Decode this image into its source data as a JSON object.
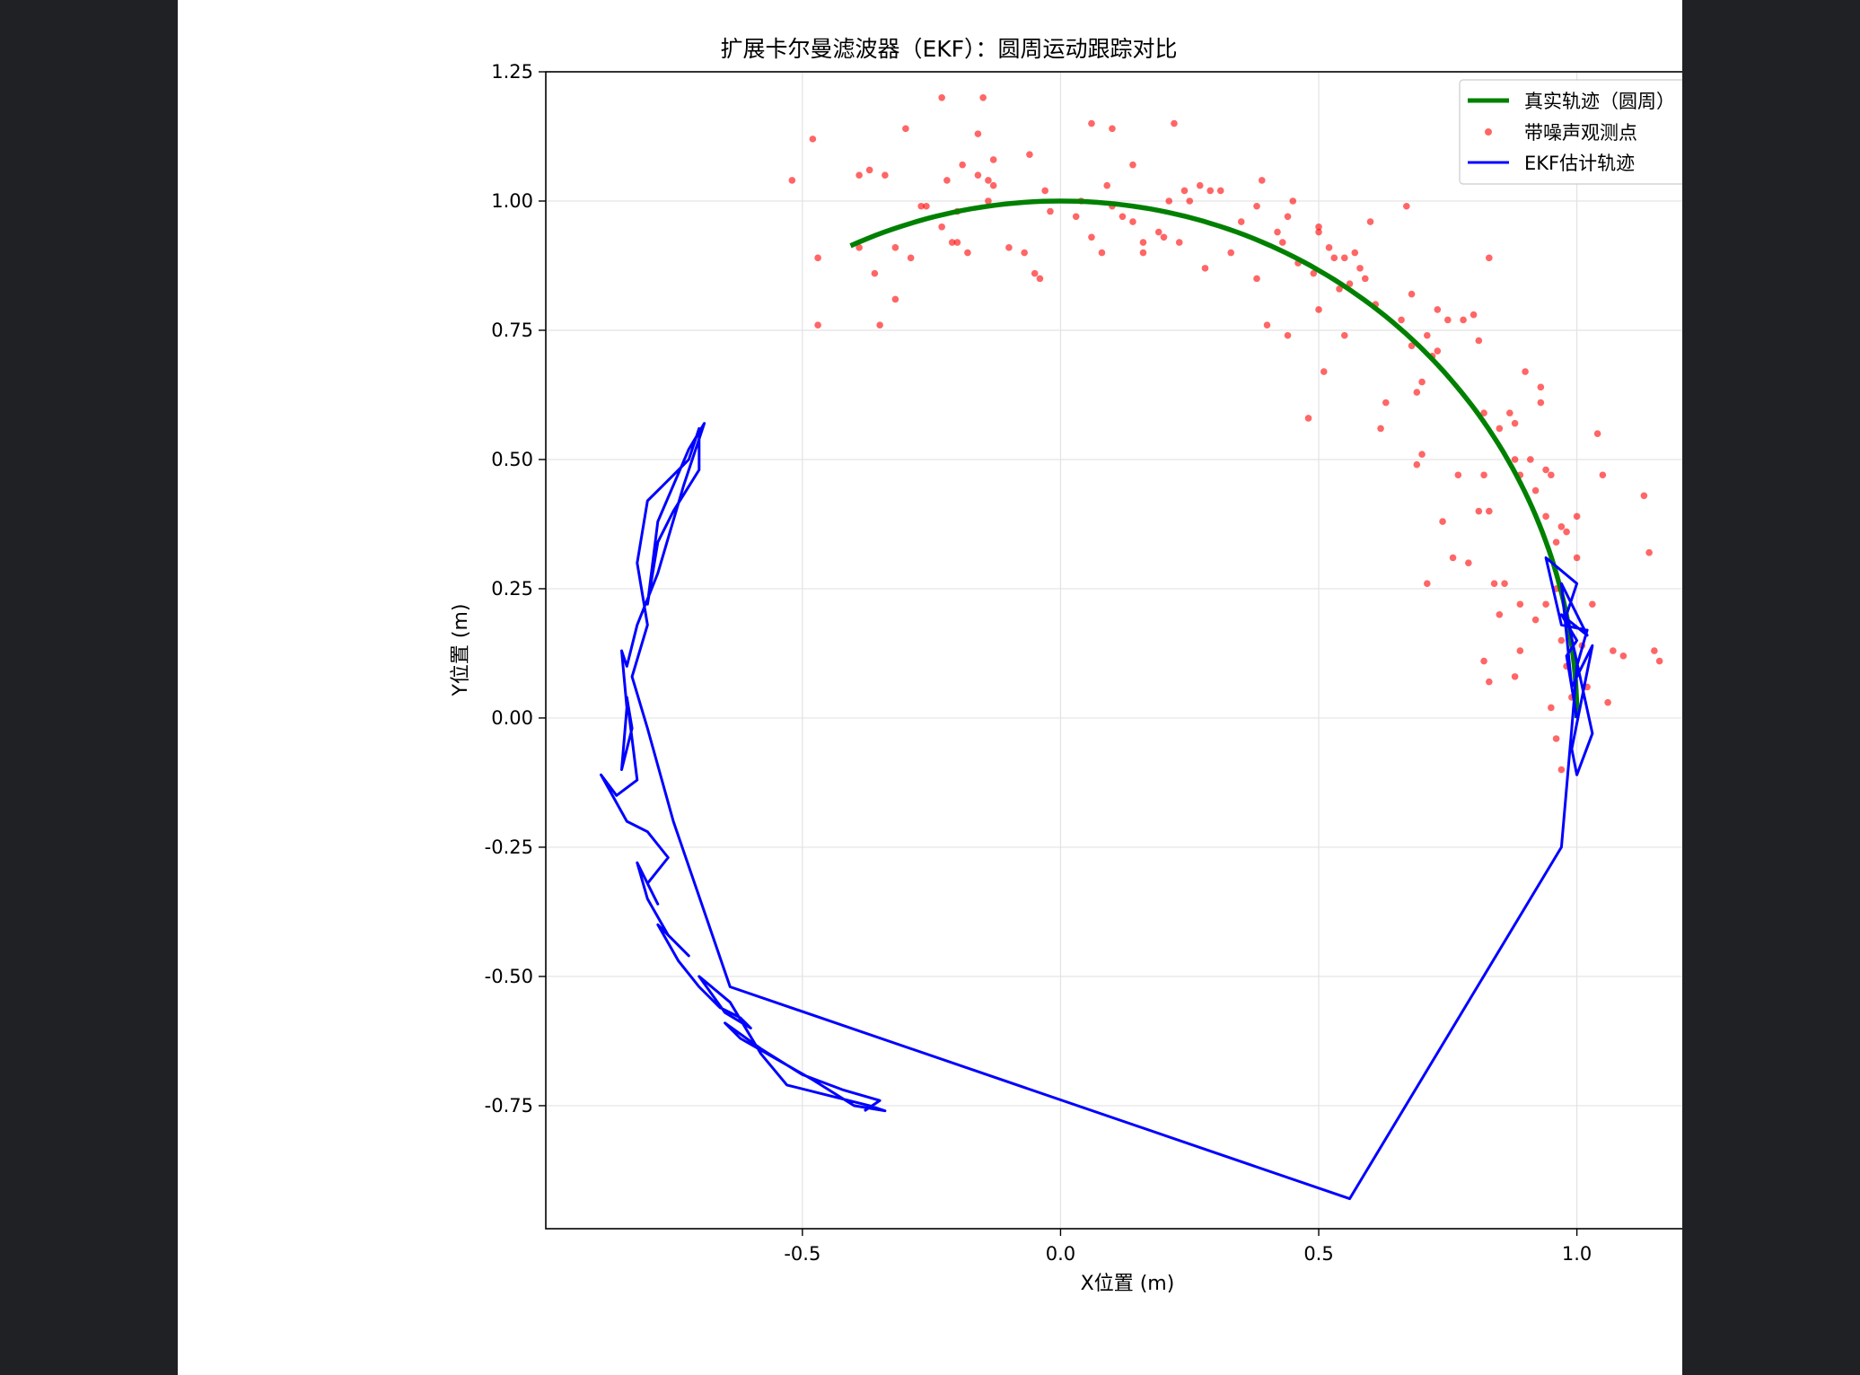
{
  "chart_data": {
    "type": "line",
    "title": "扩展卡尔曼滤波器（EKF）：圆周运动跟踪对比",
    "xlabel": "X位置 (m)",
    "ylabel": "Y位置 (m)",
    "xlim": [
      -0.997,
      1.258
    ],
    "ylim": [
      -0.988,
      1.25
    ],
    "xticks": [
      -0.5,
      0.0,
      0.5,
      1.0
    ],
    "xtick_labels": [
      "-0.5",
      "0.0",
      "0.5",
      "1.0"
    ],
    "yticks": [
      -0.75,
      -0.5,
      -0.25,
      0.0,
      0.25,
      0.5,
      0.75,
      1.0,
      1.25
    ],
    "ytick_labels": [
      "-0.75",
      "-0.50",
      "-0.25",
      "0.00",
      "0.25",
      "0.50",
      "0.75",
      "1.00",
      "1.25"
    ],
    "grid": true,
    "legend_position": "top-right",
    "series": [
      {
        "name": "真实轨迹（圆周）",
        "kind": "line",
        "color": "#008000",
        "arc": {
          "center": [
            0,
            0
          ],
          "radius": 1.0,
          "start_deg": 0,
          "end_deg": 114
        }
      },
      {
        "name": "带噪声观测点",
        "kind": "scatter",
        "color": "#ff0000",
        "points": [
          [
            -0.52,
            1.04
          ],
          [
            -0.48,
            1.12
          ],
          [
            -0.47,
            0.89
          ],
          [
            -0.47,
            0.76
          ],
          [
            -0.39,
            0.91
          ],
          [
            -0.39,
            1.05
          ],
          [
            -0.37,
            1.06
          ],
          [
            -0.36,
            0.86
          ],
          [
            -0.35,
            0.76
          ],
          [
            -0.34,
            1.05
          ],
          [
            -0.32,
            0.81
          ],
          [
            -0.32,
            0.91
          ],
          [
            -0.3,
            1.14
          ],
          [
            -0.29,
            0.89
          ],
          [
            -0.27,
            0.99
          ],
          [
            -0.26,
            0.99
          ],
          [
            -0.23,
            0.95
          ],
          [
            -0.23,
            1.2
          ],
          [
            -0.22,
            1.04
          ],
          [
            -0.21,
            0.92
          ],
          [
            -0.2,
            0.98
          ],
          [
            -0.2,
            0.92
          ],
          [
            -0.19,
            1.07
          ],
          [
            -0.18,
            0.9
          ],
          [
            -0.16,
            1.05
          ],
          [
            -0.16,
            1.13
          ],
          [
            -0.15,
            1.2
          ],
          [
            -0.14,
            1.04
          ],
          [
            -0.14,
            1.0
          ],
          [
            -0.13,
            1.03
          ],
          [
            -0.13,
            1.08
          ],
          [
            -0.1,
            0.91
          ],
          [
            -0.07,
            0.9
          ],
          [
            -0.06,
            1.09
          ],
          [
            -0.05,
            0.86
          ],
          [
            -0.04,
            0.85
          ],
          [
            -0.03,
            1.02
          ],
          [
            -0.02,
            0.98
          ],
          [
            0.04,
            1.0
          ],
          [
            0.06,
            1.15
          ],
          [
            0.03,
            0.97
          ],
          [
            0.06,
            0.93
          ],
          [
            0.08,
            0.9
          ],
          [
            0.09,
            1.03
          ],
          [
            0.1,
            1.14
          ],
          [
            0.1,
            0.99
          ],
          [
            0.12,
            0.97
          ],
          [
            0.14,
            0.96
          ],
          [
            0.14,
            1.07
          ],
          [
            0.16,
            0.92
          ],
          [
            0.16,
            0.9
          ],
          [
            0.19,
            0.94
          ],
          [
            0.2,
            0.93
          ],
          [
            0.21,
            1.0
          ],
          [
            0.22,
            1.15
          ],
          [
            0.23,
            0.92
          ],
          [
            0.24,
            1.02
          ],
          [
            0.25,
            1.0
          ],
          [
            0.27,
            1.03
          ],
          [
            0.28,
            0.87
          ],
          [
            0.29,
            1.02
          ],
          [
            0.31,
            1.02
          ],
          [
            0.33,
            0.9
          ],
          [
            0.35,
            0.96
          ],
          [
            0.38,
            0.85
          ],
          [
            0.38,
            0.99
          ],
          [
            0.39,
            1.04
          ],
          [
            0.4,
            0.76
          ],
          [
            0.42,
            0.94
          ],
          [
            0.43,
            0.92
          ],
          [
            0.44,
            0.74
          ],
          [
            0.44,
            0.97
          ],
          [
            0.45,
            1.0
          ],
          [
            0.46,
            0.88
          ],
          [
            0.48,
            0.58
          ],
          [
            0.49,
            0.86
          ],
          [
            0.5,
            0.79
          ],
          [
            0.5,
            0.94
          ],
          [
            0.5,
            0.95
          ],
          [
            0.51,
            0.67
          ],
          [
            0.52,
            0.91
          ],
          [
            0.53,
            0.89
          ],
          [
            0.54,
            0.83
          ],
          [
            0.55,
            0.74
          ],
          [
            0.55,
            0.89
          ],
          [
            0.56,
            0.84
          ],
          [
            0.57,
            0.9
          ],
          [
            0.58,
            0.87
          ],
          [
            0.59,
            0.85
          ],
          [
            0.6,
            0.96
          ],
          [
            0.61,
            0.8
          ],
          [
            0.62,
            0.56
          ],
          [
            0.63,
            0.61
          ],
          [
            0.66,
            0.77
          ],
          [
            0.67,
            0.99
          ],
          [
            0.68,
            0.82
          ],
          [
            0.68,
            0.72
          ],
          [
            0.69,
            0.63
          ],
          [
            0.69,
            0.49
          ],
          [
            0.7,
            0.51
          ],
          [
            0.7,
            0.65
          ],
          [
            0.71,
            0.26
          ],
          [
            0.71,
            0.74
          ],
          [
            0.72,
            0.7
          ],
          [
            0.73,
            0.79
          ],
          [
            0.73,
            0.71
          ],
          [
            0.74,
            0.38
          ],
          [
            0.75,
            0.77
          ],
          [
            0.76,
            0.31
          ],
          [
            0.77,
            0.47
          ],
          [
            0.78,
            0.77
          ],
          [
            0.79,
            0.3
          ],
          [
            0.8,
            0.78
          ],
          [
            0.81,
            0.73
          ],
          [
            0.81,
            0.4
          ],
          [
            0.82,
            0.59
          ],
          [
            0.82,
            0.47
          ],
          [
            0.82,
            0.11
          ],
          [
            0.83,
            0.89
          ],
          [
            0.83,
            0.4
          ],
          [
            0.84,
            0.26
          ],
          [
            0.85,
            0.2
          ],
          [
            0.85,
            0.56
          ],
          [
            0.86,
            0.26
          ],
          [
            0.87,
            0.59
          ],
          [
            0.88,
            0.5
          ],
          [
            0.88,
            0.57
          ],
          [
            0.89,
            0.47
          ],
          [
            0.89,
            0.22
          ],
          [
            0.89,
            0.13
          ],
          [
            0.9,
            0.67
          ],
          [
            0.91,
            0.5
          ],
          [
            0.92,
            0.19
          ],
          [
            0.92,
            0.44
          ],
          [
            0.93,
            0.64
          ],
          [
            0.93,
            0.61
          ],
          [
            0.94,
            0.48
          ],
          [
            0.94,
            0.22
          ],
          [
            0.94,
            0.39
          ],
          [
            0.95,
            0.47
          ],
          [
            0.95,
            0.02
          ],
          [
            0.96,
            0.25
          ],
          [
            0.96,
            0.34
          ],
          [
            0.97,
            0.37
          ],
          [
            0.97,
            0.15
          ],
          [
            0.98,
            0.36
          ],
          [
            0.98,
            0.1
          ],
          [
            0.99,
            0.04
          ],
          [
            1.0,
            0.39
          ],
          [
            1.0,
            0.31
          ],
          [
            1.01,
            0.14
          ],
          [
            1.02,
            0.06
          ],
          [
            1.03,
            0.22
          ],
          [
            1.04,
            0.55
          ],
          [
            1.05,
            0.47
          ],
          [
            1.06,
            0.03
          ],
          [
            1.07,
            0.13
          ],
          [
            1.09,
            0.12
          ],
          [
            1.13,
            0.43
          ],
          [
            1.14,
            0.32
          ],
          [
            1.15,
            0.13
          ],
          [
            1.16,
            0.11
          ],
          [
            0.96,
            -0.04
          ],
          [
            0.97,
            -0.1
          ],
          [
            0.83,
            0.07
          ],
          [
            0.88,
            0.08
          ]
        ]
      },
      {
        "name": "EKF估计轨迹",
        "kind": "line",
        "color": "#0000ff",
        "points": [
          [
            1.0,
            0.0
          ],
          [
            0.98,
            0.12
          ],
          [
            1.0,
            0.15
          ],
          [
            0.97,
            0.2
          ],
          [
            1.02,
            0.16
          ],
          [
            0.97,
            0.26
          ],
          [
            0.99,
            0.06
          ],
          [
            1.03,
            0.14
          ],
          [
            0.99,
            -0.06
          ],
          [
            1.0,
            -0.11
          ],
          [
            1.03,
            -0.03
          ],
          [
            0.98,
            0.2
          ],
          [
            1.0,
            0.26
          ],
          [
            0.94,
            0.31
          ],
          [
            0.97,
            0.18
          ],
          [
            1.02,
            0.17
          ],
          [
            1.0,
            0.1
          ],
          [
            0.99,
            -0.02
          ],
          [
            0.97,
            -0.25
          ],
          [
            0.56,
            -0.93
          ],
          [
            -0.64,
            -0.52
          ],
          [
            -0.75,
            -0.2
          ],
          [
            -0.8,
            -0.02
          ],
          [
            -0.83,
            0.08
          ],
          [
            -0.8,
            0.18
          ],
          [
            -0.82,
            0.3
          ],
          [
            -0.8,
            0.42
          ],
          [
            -0.77,
            0.45
          ],
          [
            -0.72,
            0.5
          ],
          [
            -0.7,
            0.56
          ],
          [
            -0.7,
            0.48
          ],
          [
            -0.75,
            0.4
          ],
          [
            -0.78,
            0.34
          ],
          [
            -0.8,
            0.22
          ],
          [
            -0.78,
            0.38
          ],
          [
            -0.72,
            0.52
          ],
          [
            -0.69,
            0.57
          ],
          [
            -0.73,
            0.45
          ],
          [
            -0.78,
            0.28
          ],
          [
            -0.82,
            0.18
          ],
          [
            -0.84,
            0.1
          ],
          [
            -0.85,
            0.13
          ],
          [
            -0.84,
            0.02
          ],
          [
            -0.85,
            -0.1
          ],
          [
            -0.83,
            -0.02
          ],
          [
            -0.84,
            0.04
          ],
          [
            -0.82,
            -0.12
          ],
          [
            -0.86,
            -0.15
          ],
          [
            -0.89,
            -0.11
          ],
          [
            -0.84,
            -0.2
          ],
          [
            -0.8,
            -0.22
          ],
          [
            -0.76,
            -0.27
          ],
          [
            -0.8,
            -0.32
          ],
          [
            -0.78,
            -0.36
          ],
          [
            -0.82,
            -0.28
          ],
          [
            -0.8,
            -0.35
          ],
          [
            -0.76,
            -0.42
          ],
          [
            -0.72,
            -0.46
          ],
          [
            -0.78,
            -0.4
          ],
          [
            -0.74,
            -0.47
          ],
          [
            -0.7,
            -0.52
          ],
          [
            -0.66,
            -0.56
          ],
          [
            -0.62,
            -0.58
          ],
          [
            -0.6,
            -0.6
          ],
          [
            -0.65,
            -0.57
          ],
          [
            -0.7,
            -0.5
          ],
          [
            -0.64,
            -0.55
          ],
          [
            -0.58,
            -0.65
          ],
          [
            -0.53,
            -0.71
          ],
          [
            -0.45,
            -0.73
          ],
          [
            -0.37,
            -0.75
          ],
          [
            -0.34,
            -0.76
          ],
          [
            -0.4,
            -0.75
          ],
          [
            -0.48,
            -0.7
          ],
          [
            -0.55,
            -0.66
          ],
          [
            -0.62,
            -0.62
          ],
          [
            -0.65,
            -0.59
          ],
          [
            -0.58,
            -0.64
          ],
          [
            -0.5,
            -0.69
          ],
          [
            -0.42,
            -0.72
          ],
          [
            -0.35,
            -0.74
          ],
          [
            -0.38,
            -0.76
          ]
        ]
      }
    ]
  }
}
